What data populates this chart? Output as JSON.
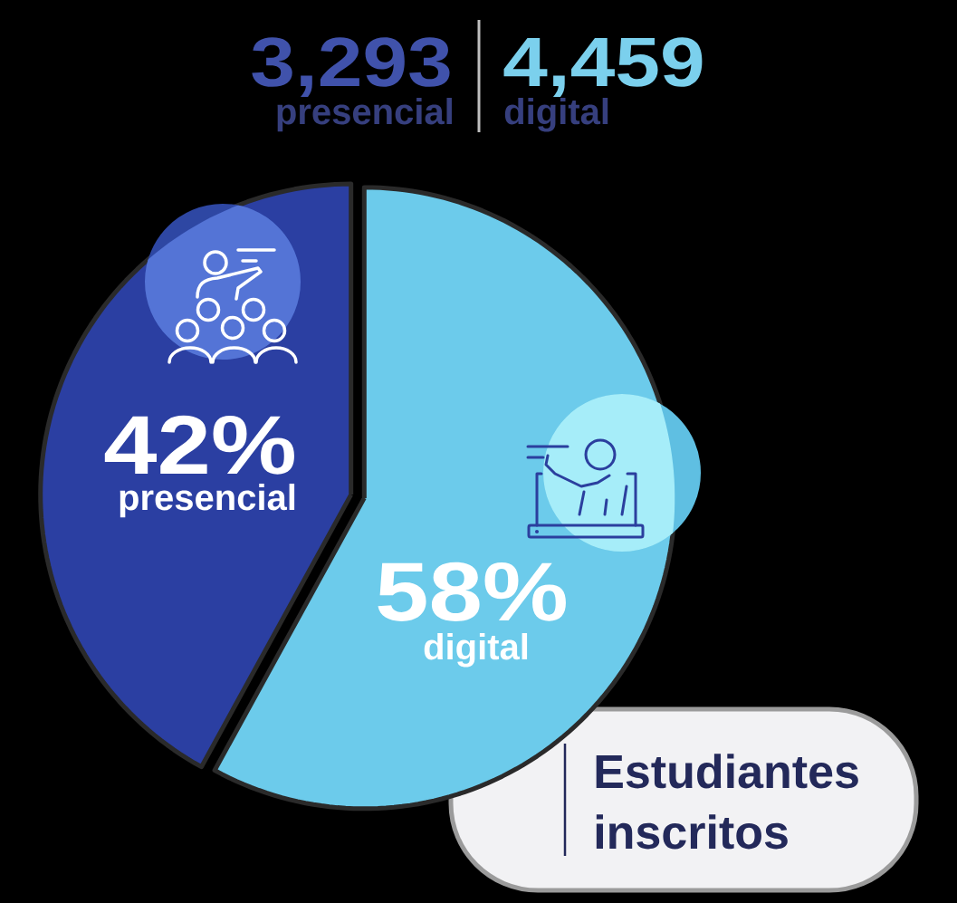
{
  "chart_data": {
    "type": "pie",
    "title": "Estudiantes inscritos",
    "categories": [
      "presencial",
      "digital"
    ],
    "values": [
      42,
      58
    ],
    "colors": [
      "#2b3fa2",
      "#6ccbeb"
    ],
    "value_labels": [
      "42%",
      "58%"
    ],
    "annotations": [
      "3,293",
      "4,459"
    ]
  }
}
